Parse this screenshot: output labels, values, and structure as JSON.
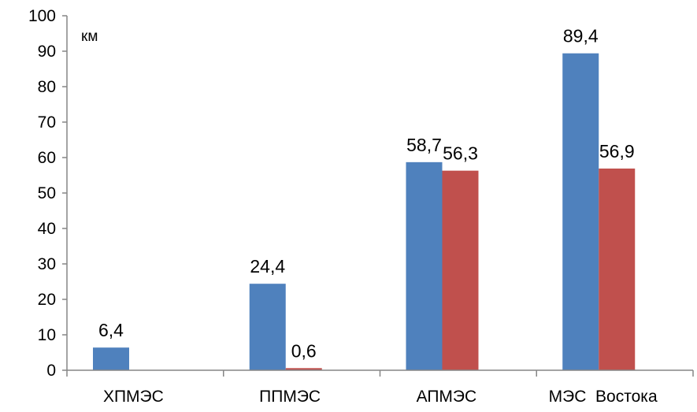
{
  "chart_data": {
    "type": "bar",
    "unit_label": "км",
    "categories": [
      "ХПМЭС",
      "ППМЭС",
      "АПМЭС",
      "МЭС  Востока"
    ],
    "series": [
      {
        "values": [
          6.4,
          24.4,
          58.7,
          89.4
        ],
        "value_labels": [
          "6,4",
          "24,4",
          "58,7",
          "89,4"
        ],
        "color": "#4F81BD"
      },
      {
        "values": [
          null,
          0.6,
          56.3,
          56.9
        ],
        "value_labels": [
          "",
          "0,6",
          "56,3",
          "56,9"
        ],
        "color": "#C0504D"
      }
    ],
    "y_ticks": [
      "0",
      "10",
      "20",
      "30",
      "40",
      "50",
      "60",
      "70",
      "80",
      "90",
      "100"
    ],
    "ylim": [
      0,
      100
    ],
    "grid": false,
    "legend": "none"
  }
}
